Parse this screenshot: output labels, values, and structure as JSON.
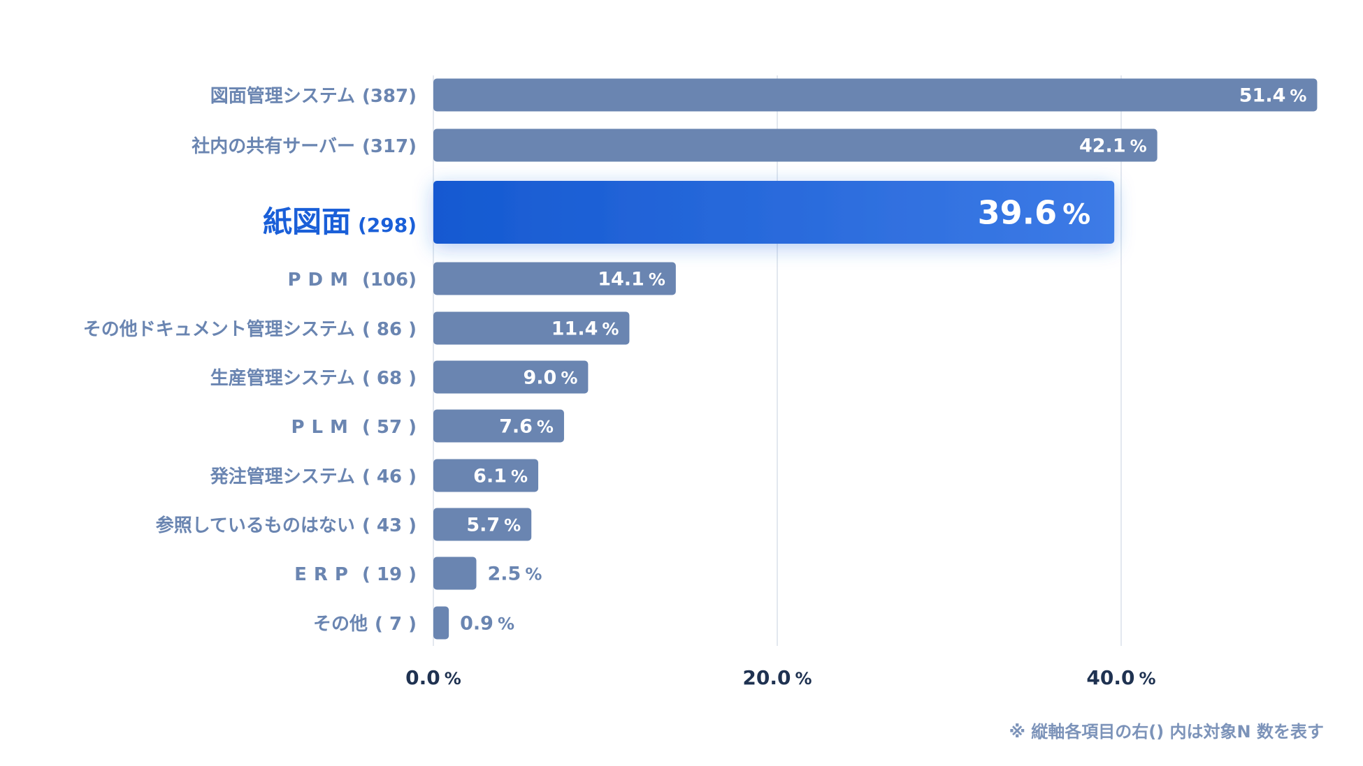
{
  "chart_data": {
    "type": "bar",
    "orientation": "horizontal",
    "categories": [
      "図面管理システム",
      "社内の共有サーバー",
      "紙図面",
      "PDM",
      "その他ドキュメント管理システム",
      "生産管理システム",
      "PLM",
      "発注管理システム",
      "参照しているものはない",
      "ERP",
      "その他"
    ],
    "counts": [
      "(387)",
      "(317)",
      "(298)",
      "(106)",
      "( 86 )",
      "( 68 )",
      "( 57 )",
      "( 46 )",
      "( 43 )",
      "( 19 )",
      "( 7 )"
    ],
    "values": [
      51.4,
      42.1,
      39.6,
      14.1,
      11.4,
      9.0,
      7.6,
      6.1,
      5.7,
      2.5,
      0.9
    ],
    "value_labels": [
      "51.4",
      "42.1",
      "39.6",
      "14.1",
      "11.4",
      "9.0",
      "7.6",
      "6.1",
      "5.7",
      "2.5",
      "0.9"
    ],
    "value_unit": "%",
    "highlight_category": "紙図面",
    "xlim": [
      0,
      52
    ],
    "xticks": [
      0,
      20,
      40
    ],
    "xtick_labels": [
      "0.0",
      "20.0",
      "40.0"
    ],
    "grid": true,
    "legend": "none",
    "colors": {
      "bar": "#6a85b1",
      "highlight_start": "#1559d1",
      "highlight_end": "#3d7be6",
      "label": "#6a85b1",
      "highlight_label": "#1a5fd8",
      "axis_text": "#1f3251",
      "gridline": "#e3e8ef"
    }
  },
  "footnote": "※ 縦軸各項目の右() 内は対象N 数を表す"
}
